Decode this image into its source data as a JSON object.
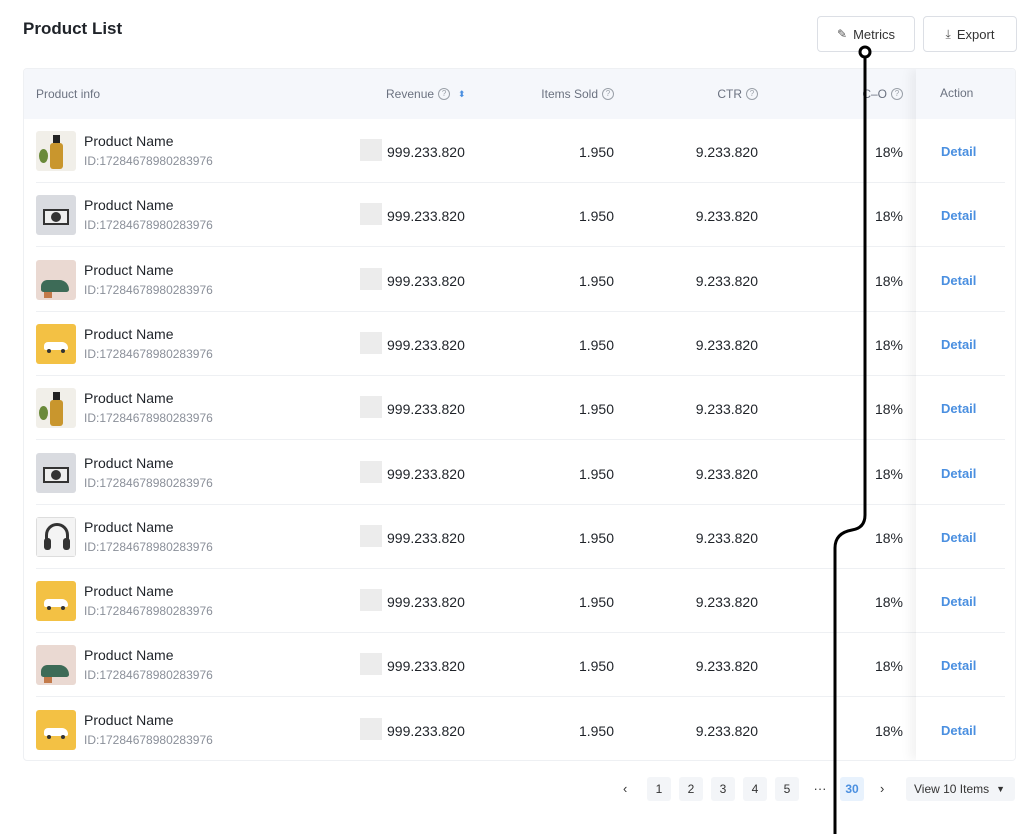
{
  "page": {
    "title": "Product List"
  },
  "toolbar": {
    "metrics_label": "Metrics",
    "export_label": "Export",
    "metrics_icon": "edit-icon",
    "export_icon": "download-icon"
  },
  "table": {
    "columns": {
      "product_info": "Product info",
      "revenue": "Revenue",
      "items_sold": "Items Sold",
      "ctr": "CTR",
      "co": "C–O",
      "action": "Action"
    },
    "rows": [
      {
        "image": "bottle",
        "name": "Product Name",
        "id": "ID:17284678980283976",
        "revenue": "999.233.820",
        "items_sold": "1.950",
        "ctr": "9.233.820",
        "co": "18%",
        "action": "Detail"
      },
      {
        "image": "camera",
        "name": "Product Name",
        "id": "ID:17284678980283976",
        "revenue": "999.233.820",
        "items_sold": "1.950",
        "ctr": "9.233.820",
        "co": "18%",
        "action": "Detail"
      },
      {
        "image": "shoe",
        "name": "Product Name",
        "id": "ID:17284678980283976",
        "revenue": "999.233.820",
        "items_sold": "1.950",
        "ctr": "9.233.820",
        "co": "18%",
        "action": "Detail"
      },
      {
        "image": "car",
        "name": "Product Name",
        "id": "ID:17284678980283976",
        "revenue": "999.233.820",
        "items_sold": "1.950",
        "ctr": "9.233.820",
        "co": "18%",
        "action": "Detail"
      },
      {
        "image": "bottle",
        "name": "Product Name",
        "id": "ID:17284678980283976",
        "revenue": "999.233.820",
        "items_sold": "1.950",
        "ctr": "9.233.820",
        "co": "18%",
        "action": "Detail"
      },
      {
        "image": "camera",
        "name": "Product Name",
        "id": "ID:17284678980283976",
        "revenue": "999.233.820",
        "items_sold": "1.950",
        "ctr": "9.233.820",
        "co": "18%",
        "action": "Detail"
      },
      {
        "image": "headphones",
        "name": "Product Name",
        "id": "ID:17284678980283976",
        "revenue": "999.233.820",
        "items_sold": "1.950",
        "ctr": "9.233.820",
        "co": "18%",
        "action": "Detail"
      },
      {
        "image": "car",
        "name": "Product Name",
        "id": "ID:17284678980283976",
        "revenue": "999.233.820",
        "items_sold": "1.950",
        "ctr": "9.233.820",
        "co": "18%",
        "action": "Detail"
      },
      {
        "image": "shoe",
        "name": "Product Name",
        "id": "ID:17284678980283976",
        "revenue": "999.233.820",
        "items_sold": "1.950",
        "ctr": "9.233.820",
        "co": "18%",
        "action": "Detail"
      },
      {
        "image": "car",
        "name": "Product Name",
        "id": "ID:17284678980283976",
        "revenue": "999.233.820",
        "items_sold": "1.950",
        "ctr": "9.233.820",
        "co": "18%",
        "action": "Detail"
      }
    ]
  },
  "pagination": {
    "pages": [
      "1",
      "2",
      "3",
      "4",
      "5"
    ],
    "ellipsis": "···",
    "last": "30",
    "current": "30",
    "page_size": "View 10 Items"
  },
  "colors": {
    "accent": "#4a8fe0",
    "header_bg": "#f5f7fb"
  }
}
